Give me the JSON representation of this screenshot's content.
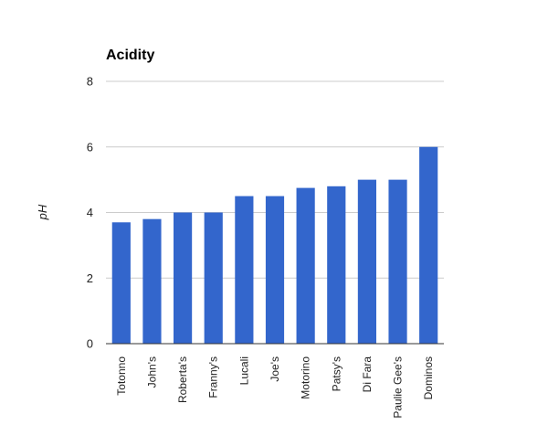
{
  "chart_data": {
    "type": "bar",
    "title": "Acidity",
    "xlabel": "",
    "ylabel": "pH",
    "ylim": [
      0,
      8
    ],
    "yticks": [
      0,
      2,
      4,
      6,
      8
    ],
    "grid": true,
    "legend": "none",
    "categories": [
      "Totonno",
      "John's",
      "Roberta's",
      "Franny's",
      "Lucali",
      "Joe's",
      "Motorino",
      "Patsy's",
      "Di Fara",
      "Paulie Gee's",
      "Dominos"
    ],
    "series": [
      {
        "values": [
          3.7,
          3.8,
          4.0,
          4.0,
          4.5,
          4.5,
          4.75,
          4.8,
          5.0,
          5.0,
          6.0
        ]
      }
    ]
  },
  "colors": {
    "bar": "#3366cc",
    "grid": "#cccccc",
    "axis": "#333333",
    "text": "#222222",
    "tick_text": "#222222"
  }
}
